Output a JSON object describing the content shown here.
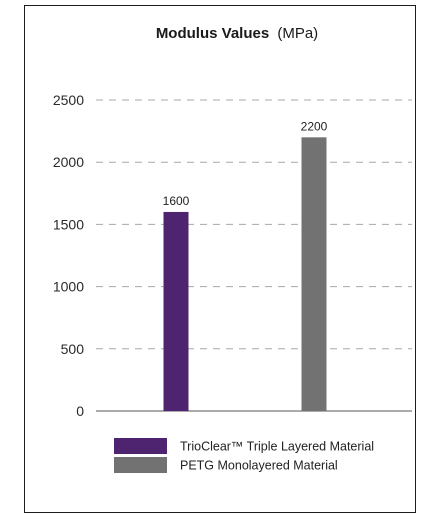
{
  "chart_data": {
    "type": "bar",
    "title": "Modulus Values",
    "title_unit": "(MPa)",
    "xlabel": "",
    "ylabel": "",
    "categories": [
      "TrioClear™ Triple Layered Material",
      "PETG Monolayered Material"
    ],
    "values": [
      1600,
      2200
    ],
    "colors": [
      "#4e2370",
      "#727272"
    ],
    "yticks": [
      0,
      500,
      1000,
      1500,
      2000,
      2500
    ],
    "ylim": [
      0,
      2500
    ],
    "grid": "dashed horizontal",
    "legend_position": "bottom"
  }
}
